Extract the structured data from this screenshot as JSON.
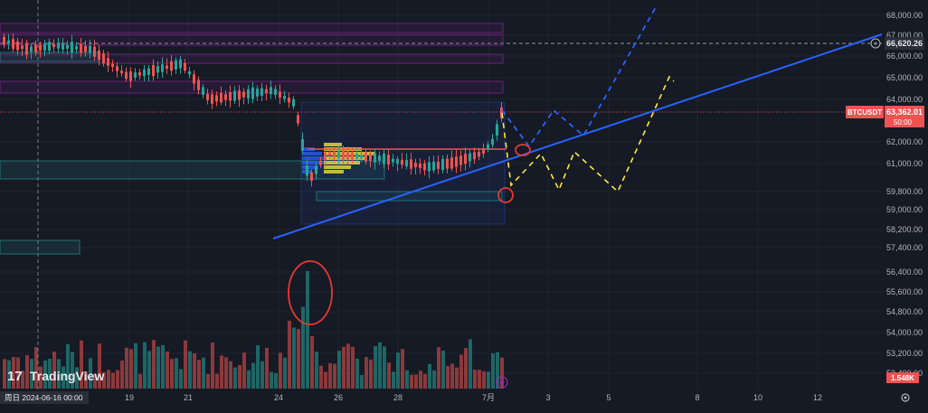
{
  "chart_data": {
    "type": "candlestick",
    "symbol": "BTCUSDT",
    "brand": "TradingView",
    "header_text": "",
    "y_ticks": [
      "68,000.00",
      "67,000.00",
      "66,000.00",
      "65,000.00",
      "64,000.00",
      "62,000.00",
      "61,000.00",
      "59,800.00",
      "59,000.00",
      "58,200.00",
      "57,400.00",
      "56,400.00",
      "55,600.00",
      "54,800.00",
      "54,000.00",
      "53,200.00",
      "52,400.00"
    ],
    "price_labels": {
      "crosshair_price": "66,620.26",
      "last_symbol": "BTCUSDT",
      "last_price": "63,362.01",
      "countdown": "50:00",
      "volume": "1.548K"
    },
    "x_ticks": [
      "19",
      "21",
      "24",
      "26",
      "28",
      "7月",
      "3",
      "5",
      "8",
      "10",
      "12"
    ],
    "cursor_date": "周日 2024-06-16   00:00",
    "ylim_hint": [
      52400,
      68600
    ],
    "colors": {
      "up": "#26a69a",
      "down": "#ef5350",
      "trend": "#2962ff",
      "proj_blue": "#2962ff",
      "proj_yellow": "#ffeb3b",
      "circle": "#e53935",
      "bg": "#161a25"
    }
  }
}
